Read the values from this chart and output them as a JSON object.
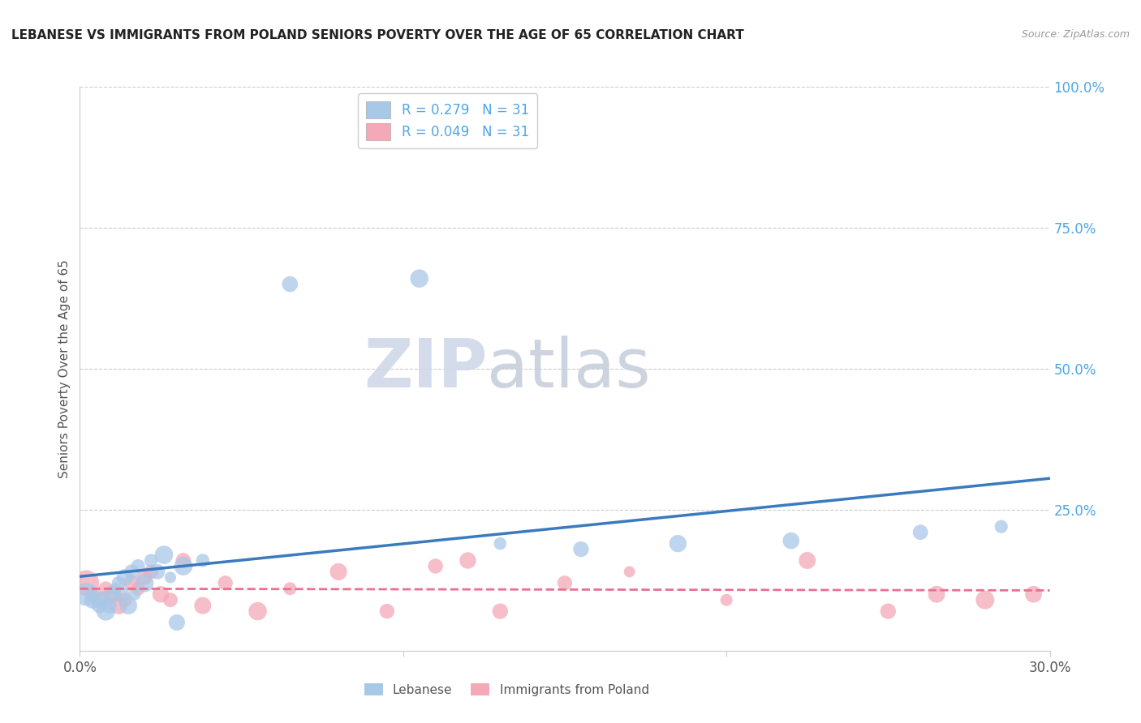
{
  "title": "LEBANESE VS IMMIGRANTS FROM POLAND SENIORS POVERTY OVER THE AGE OF 65 CORRELATION CHART",
  "source": "Source: ZipAtlas.com",
  "ylabel": "Seniors Poverty Over the Age of 65",
  "xlim": [
    0.0,
    0.3
  ],
  "ylim": [
    0.0,
    1.0
  ],
  "xticks": [
    0.0,
    0.1,
    0.2,
    0.3
  ],
  "xticklabels": [
    "0.0%",
    "",
    "",
    "30.0%"
  ],
  "yticks_right": [
    0.0,
    0.25,
    0.5,
    0.75,
    1.0
  ],
  "ytick_labels_right": [
    "",
    "25.0%",
    "50.0%",
    "75.0%",
    "100.0%"
  ],
  "legend_label1": "Lebanese",
  "legend_label2": "Immigrants from Poland",
  "R1": 0.279,
  "N1": 31,
  "R2": 0.049,
  "N2": 31,
  "watermark_zip": "ZIP",
  "watermark_atlas": "atlas",
  "blue_color": "#a8c8e8",
  "pink_color": "#f4a8b8",
  "blue_line_color": "#3a7abf",
  "pink_line_color": "#e87090",
  "lebanese_x": [
    0.002,
    0.004,
    0.006,
    0.007,
    0.008,
    0.009,
    0.01,
    0.011,
    0.012,
    0.013,
    0.014,
    0.015,
    0.016,
    0.017,
    0.018,
    0.02,
    0.022,
    0.024,
    0.026,
    0.028,
    0.03,
    0.032,
    0.038,
    0.065,
    0.105,
    0.13,
    0.155,
    0.185,
    0.22,
    0.26,
    0.285
  ],
  "lebanese_y": [
    0.1,
    0.09,
    0.08,
    0.09,
    0.07,
    0.08,
    0.1,
    0.11,
    0.12,
    0.1,
    0.13,
    0.08,
    0.14,
    0.1,
    0.15,
    0.12,
    0.16,
    0.14,
    0.17,
    0.13,
    0.05,
    0.15,
    0.16,
    0.65,
    0.66,
    0.19,
    0.18,
    0.19,
    0.195,
    0.21,
    0.22
  ],
  "polish_x": [
    0.002,
    0.004,
    0.006,
    0.008,
    0.01,
    0.012,
    0.014,
    0.016,
    0.018,
    0.02,
    0.022,
    0.025,
    0.028,
    0.032,
    0.038,
    0.045,
    0.055,
    0.065,
    0.08,
    0.095,
    0.11,
    0.12,
    0.13,
    0.15,
    0.17,
    0.2,
    0.225,
    0.25,
    0.265,
    0.28,
    0.295
  ],
  "polish_y": [
    0.12,
    0.1,
    0.09,
    0.11,
    0.1,
    0.08,
    0.09,
    0.12,
    0.11,
    0.13,
    0.14,
    0.1,
    0.09,
    0.16,
    0.08,
    0.12,
    0.07,
    0.11,
    0.14,
    0.07,
    0.15,
    0.16,
    0.07,
    0.12,
    0.14,
    0.09,
    0.16,
    0.07,
    0.1,
    0.09,
    0.1
  ],
  "bg_color": "#ffffff",
  "grid_color": "#cccccc"
}
